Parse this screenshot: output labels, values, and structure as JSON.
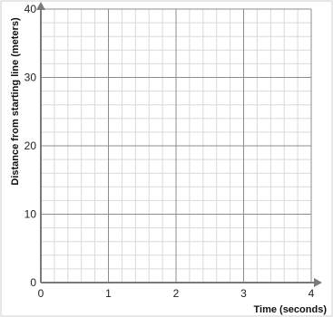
{
  "chart_data": {
    "type": "line",
    "title": "",
    "xlabel": "Time (seconds)",
    "ylabel": "Distance from starting line (meters)",
    "xlim": [
      0,
      4
    ],
    "ylim": [
      0,
      40
    ],
    "x_ticks": [
      0,
      1,
      2,
      3,
      4
    ],
    "y_ticks": [
      0,
      10,
      20,
      30,
      40
    ],
    "x_tick_labels": [
      "0",
      "1",
      "2",
      "3",
      "4"
    ],
    "y_tick_labels": [
      "0",
      "10",
      "20",
      "30",
      "40"
    ],
    "minor_x_step": 0.2,
    "minor_y_step": 2,
    "grid": true,
    "series": []
  },
  "colors": {
    "major_grid": "#8c8c8c",
    "minor_grid": "#d9d9d9",
    "axis": "#7a7a7a",
    "border": "#cfcfcf"
  }
}
